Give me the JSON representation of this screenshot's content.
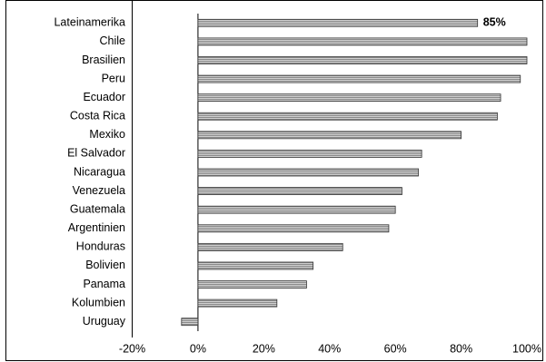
{
  "chart_data": {
    "type": "hbar",
    "categories": [
      "Lateinamerika",
      "Chile",
      "Brasilien",
      "Peru",
      "Ecuador",
      "Costa Rica",
      "Mexiko",
      "El Salvador",
      "Nicaragua",
      "Venezuela",
      "Guatemala",
      "Argentinien",
      "Honduras",
      "Bolivien",
      "Panama",
      "Kolumbien",
      "Uruguay"
    ],
    "values": [
      85,
      100,
      100,
      98,
      92,
      91,
      80,
      68,
      67,
      62,
      60,
      58,
      44,
      35,
      33,
      24,
      -5
    ],
    "value_labels": [
      "85%",
      null,
      null,
      null,
      null,
      null,
      null,
      null,
      null,
      null,
      null,
      null,
      null,
      null,
      null,
      null,
      null
    ],
    "color": "#a6a6a6",
    "xlim": [
      -20,
      100
    ],
    "xticks": [
      {
        "value": -20,
        "label": "-20%"
      },
      {
        "value": 0,
        "label": "0%"
      },
      {
        "value": 20,
        "label": "20%"
      },
      {
        "value": 40,
        "label": "40%"
      },
      {
        "value": 60,
        "label": "60%"
      },
      {
        "value": 80,
        "label": "80%"
      },
      {
        "value": 100,
        "label": "100%"
      }
    ]
  }
}
